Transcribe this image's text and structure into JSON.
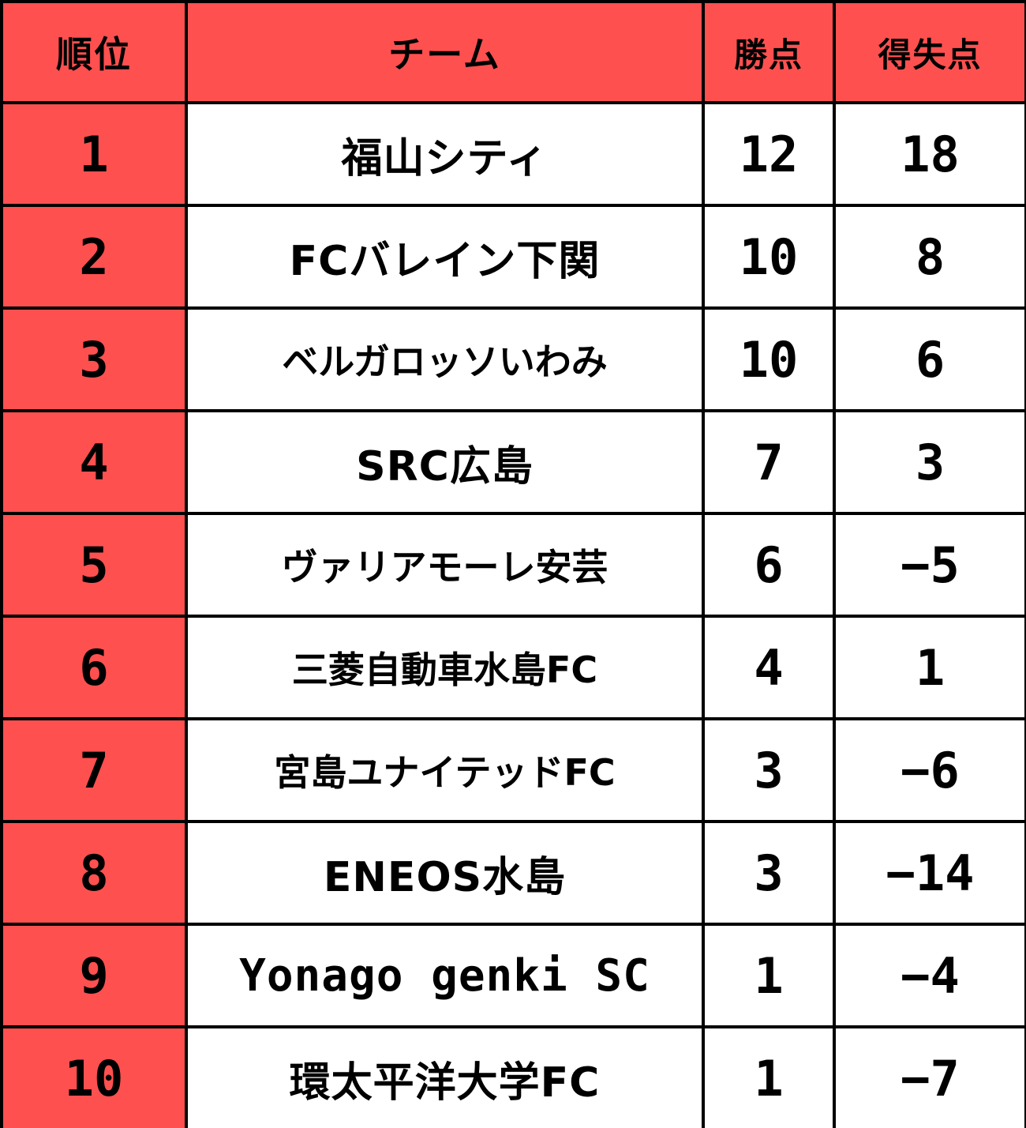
{
  "table": {
    "headers": {
      "rank": "順位",
      "team": "チーム",
      "points": "勝点",
      "goal_difference": "得失点"
    },
    "colors": {
      "header_bg": "#ff5050",
      "rank_bg": "#ff5050",
      "cell_bg": "#ffffff",
      "border": "#000000",
      "text": "#000000"
    },
    "rows": [
      {
        "rank": "1",
        "team": "福山シティ",
        "points": "12",
        "goal_difference": "18"
      },
      {
        "rank": "2",
        "team": "FCバレイン下関",
        "points": "10",
        "goal_difference": "8"
      },
      {
        "rank": "3",
        "team": "ベルガロッソいわみ",
        "points": "10",
        "goal_difference": "6"
      },
      {
        "rank": "4",
        "team": "SRC広島",
        "points": "7",
        "goal_difference": "3"
      },
      {
        "rank": "5",
        "team": "ヴァリアモーレ安芸",
        "points": "6",
        "goal_difference": "−5"
      },
      {
        "rank": "6",
        "team": "三菱自動車水島FC",
        "points": "4",
        "goal_difference": "1"
      },
      {
        "rank": "7",
        "team": "宮島ユナイテッドFC",
        "points": "3",
        "goal_difference": "−6"
      },
      {
        "rank": "8",
        "team": "ENEOS水島",
        "points": "3",
        "goal_difference": "−14"
      },
      {
        "rank": "9",
        "team": "Yonago genki SC",
        "points": "1",
        "goal_difference": "−4"
      },
      {
        "rank": "10",
        "team": "環太平洋大学FC",
        "points": "1",
        "goal_difference": "−7"
      }
    ]
  }
}
